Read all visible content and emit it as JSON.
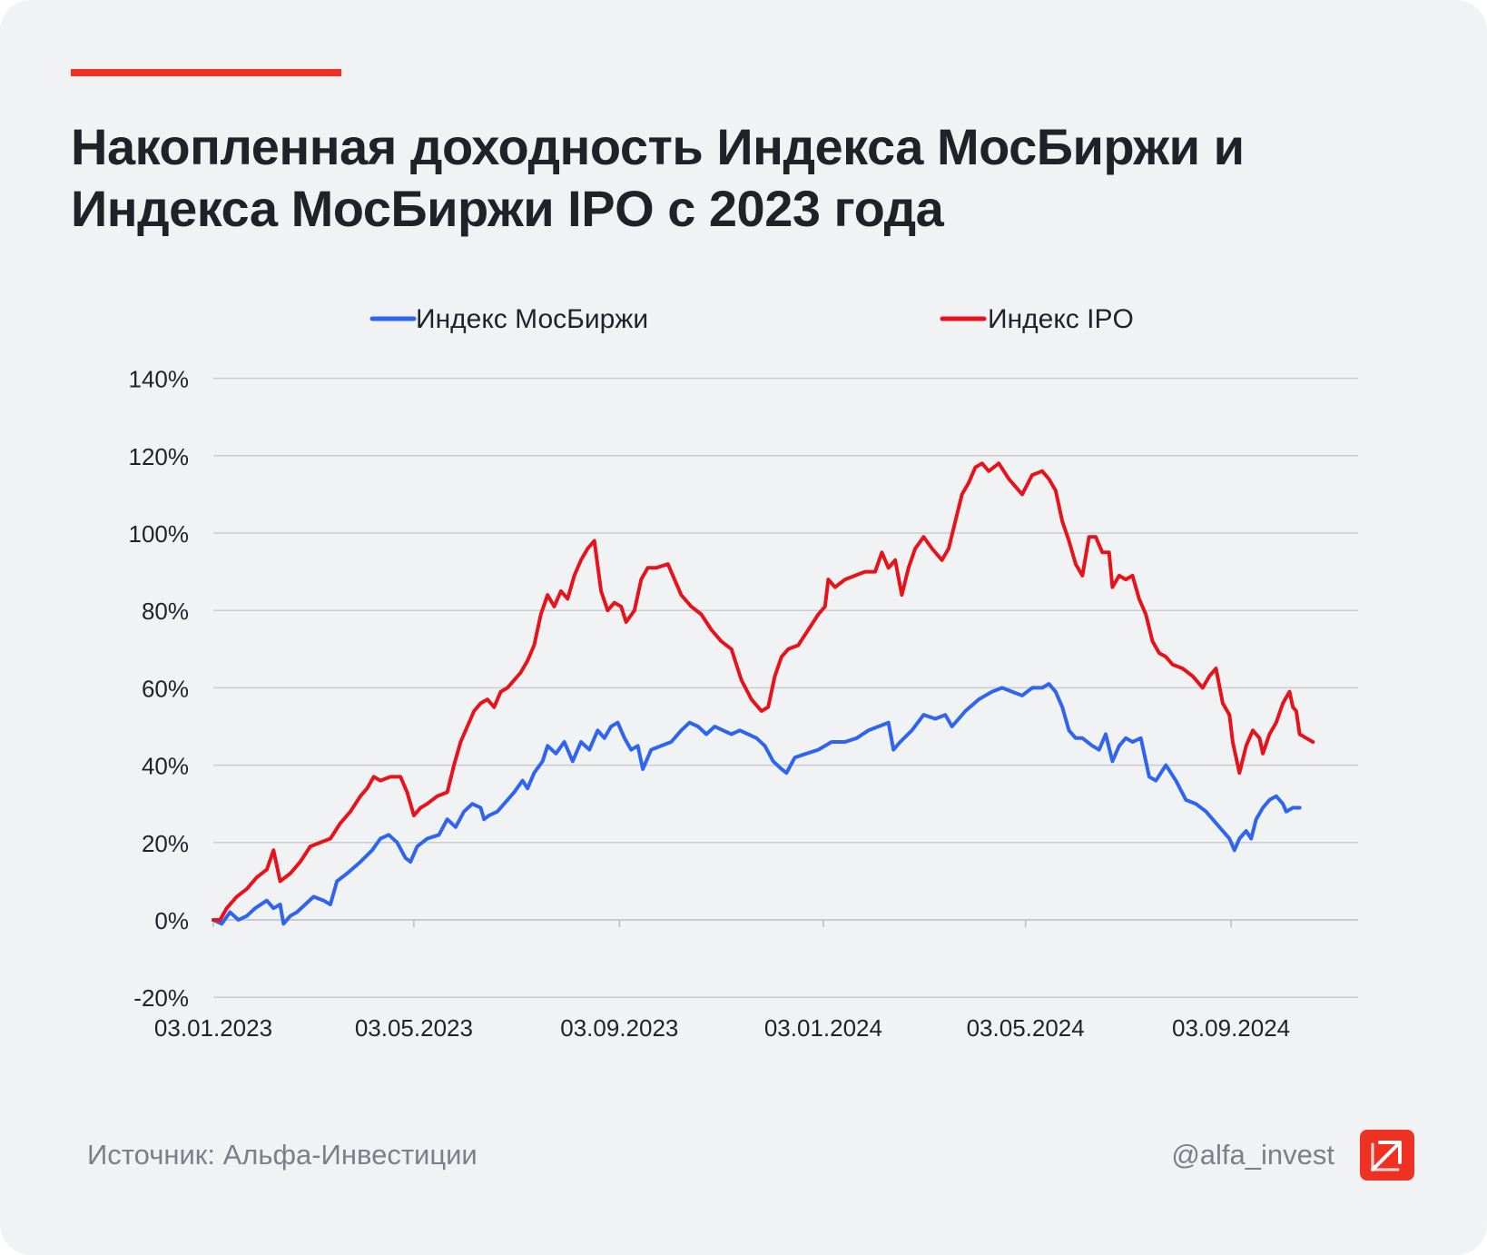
{
  "header": {
    "title_line1": "Накопленная доходность Индекса МосБиржи и",
    "title_line2": "Индекса МосБиржи IPO с 2023 года"
  },
  "footer": {
    "source": "Источник: Альфа-Инвестиции",
    "handle": "@alfa_invest"
  },
  "colors": {
    "accent": "#ef3124",
    "moex": "#2e64f0",
    "ipo": "#e8121b",
    "grid": "#c9ccd1",
    "text": "#1f2329"
  },
  "chart_data": {
    "type": "line",
    "title": "Накопленная доходность Индекса МосБиржи и Индекса МосБиржи IPO с 2023 года",
    "xlabel": "",
    "ylabel": "",
    "ylim": [
      -20,
      140
    ],
    "yticks": [
      -20,
      0,
      20,
      40,
      60,
      80,
      100,
      120,
      140
    ],
    "ytick_labels": [
      "-20%",
      "0%",
      "20%",
      "40%",
      "60%",
      "80%",
      "100%",
      "120%",
      "140%"
    ],
    "x_range": [
      "03.01.2023",
      "18.11.2024"
    ],
    "x_range_days": [
      0,
      685
    ],
    "xticks": [
      {
        "label": "03.01.2023",
        "day": 0
      },
      {
        "label": "03.05.2023",
        "day": 120
      },
      {
        "label": "03.09.2023",
        "day": 243
      },
      {
        "label": "03.01.2024",
        "day": 365
      },
      {
        "label": "03.05.2024",
        "day": 486
      },
      {
        "label": "03.09.2024",
        "day": 609
      }
    ],
    "grid": true,
    "legend_position": "top",
    "series": [
      {
        "name": "Индекс МосБиржи",
        "color": "#2e64f0",
        "points": [
          [
            0,
            0
          ],
          [
            5,
            -1
          ],
          [
            10,
            2
          ],
          [
            15,
            0
          ],
          [
            20,
            1
          ],
          [
            25,
            3
          ],
          [
            32,
            5
          ],
          [
            36,
            3
          ],
          [
            40,
            4
          ],
          [
            42,
            -1
          ],
          [
            46,
            1
          ],
          [
            50,
            2
          ],
          [
            55,
            4
          ],
          [
            60,
            6
          ],
          [
            66,
            5
          ],
          [
            70,
            4
          ],
          [
            74,
            10
          ],
          [
            80,
            12
          ],
          [
            88,
            15
          ],
          [
            95,
            18
          ],
          [
            100,
            21
          ],
          [
            105,
            22
          ],
          [
            110,
            20
          ],
          [
            115,
            16
          ],
          [
            118,
            15
          ],
          [
            122,
            19
          ],
          [
            128,
            21
          ],
          [
            135,
            22
          ],
          [
            140,
            26
          ],
          [
            145,
            24
          ],
          [
            150,
            28
          ],
          [
            155,
            30
          ],
          [
            160,
            29
          ],
          [
            162,
            26
          ],
          [
            165,
            27
          ],
          [
            170,
            28
          ],
          [
            176,
            31
          ],
          [
            180,
            33
          ],
          [
            185,
            36
          ],
          [
            188,
            34
          ],
          [
            192,
            38
          ],
          [
            197,
            41
          ],
          [
            200,
            45
          ],
          [
            205,
            43
          ],
          [
            210,
            46
          ],
          [
            215,
            41
          ],
          [
            220,
            46
          ],
          [
            225,
            44
          ],
          [
            230,
            49
          ],
          [
            234,
            47
          ],
          [
            238,
            50
          ],
          [
            242,
            51
          ],
          [
            246,
            47
          ],
          [
            250,
            44
          ],
          [
            254,
            45
          ],
          [
            257,
            39
          ],
          [
            262,
            44
          ],
          [
            268,
            45
          ],
          [
            274,
            46
          ],
          [
            280,
            49
          ],
          [
            285,
            51
          ],
          [
            290,
            50
          ],
          [
            295,
            48
          ],
          [
            300,
            50
          ],
          [
            305,
            49
          ],
          [
            310,
            48
          ],
          [
            315,
            49
          ],
          [
            320,
            48
          ],
          [
            325,
            47
          ],
          [
            330,
            45
          ],
          [
            335,
            41
          ],
          [
            340,
            39
          ],
          [
            343,
            38
          ],
          [
            348,
            42
          ],
          [
            355,
            43
          ],
          [
            362,
            44
          ],
          [
            370,
            46
          ],
          [
            378,
            46
          ],
          [
            385,
            47
          ],
          [
            392,
            49
          ],
          [
            398,
            50
          ],
          [
            404,
            51
          ],
          [
            407,
            44
          ],
          [
            411,
            46
          ],
          [
            418,
            49
          ],
          [
            425,
            53
          ],
          [
            432,
            52
          ],
          [
            438,
            53
          ],
          [
            442,
            50
          ],
          [
            450,
            54
          ],
          [
            458,
            57
          ],
          [
            466,
            59
          ],
          [
            472,
            60
          ],
          [
            478,
            59
          ],
          [
            484,
            58
          ],
          [
            490,
            60
          ],
          [
            496,
            60
          ],
          [
            500,
            61
          ],
          [
            504,
            59
          ],
          [
            508,
            55
          ],
          [
            512,
            49
          ],
          [
            516,
            47
          ],
          [
            520,
            47
          ],
          [
            526,
            45
          ],
          [
            530,
            44
          ],
          [
            534,
            48
          ],
          [
            538,
            41
          ],
          [
            542,
            45
          ],
          [
            546,
            47
          ],
          [
            550,
            46
          ],
          [
            555,
            47
          ],
          [
            560,
            37
          ],
          [
            564,
            36
          ],
          [
            570,
            40
          ],
          [
            576,
            36
          ],
          [
            582,
            31
          ],
          [
            588,
            30
          ],
          [
            594,
            28
          ],
          [
            598,
            26
          ],
          [
            604,
            23
          ],
          [
            608,
            21
          ],
          [
            611,
            18
          ],
          [
            614,
            21
          ],
          [
            618,
            23
          ],
          [
            621,
            21
          ],
          [
            624,
            26
          ],
          [
            628,
            29
          ],
          [
            632,
            31
          ],
          [
            636,
            32
          ],
          [
            640,
            30
          ],
          [
            642,
            28
          ],
          [
            646,
            29
          ],
          [
            650,
            29
          ]
        ]
      },
      {
        "name": "Индекс IPO",
        "color": "#e8121b",
        "points": [
          [
            0,
            0
          ],
          [
            4,
            0
          ],
          [
            8,
            3
          ],
          [
            14,
            6
          ],
          [
            20,
            8
          ],
          [
            26,
            11
          ],
          [
            32,
            13
          ],
          [
            36,
            18
          ],
          [
            40,
            10
          ],
          [
            46,
            12
          ],
          [
            52,
            15
          ],
          [
            58,
            19
          ],
          [
            64,
            20
          ],
          [
            70,
            21
          ],
          [
            76,
            25
          ],
          [
            82,
            28
          ],
          [
            88,
            32
          ],
          [
            92,
            34
          ],
          [
            96,
            37
          ],
          [
            100,
            36
          ],
          [
            106,
            37
          ],
          [
            112,
            37
          ],
          [
            116,
            33
          ],
          [
            120,
            27
          ],
          [
            124,
            29
          ],
          [
            128,
            30
          ],
          [
            134,
            32
          ],
          [
            140,
            33
          ],
          [
            144,
            40
          ],
          [
            148,
            46
          ],
          [
            152,
            50
          ],
          [
            156,
            54
          ],
          [
            160,
            56
          ],
          [
            164,
            57
          ],
          [
            168,
            55
          ],
          [
            172,
            59
          ],
          [
            176,
            60
          ],
          [
            180,
            62
          ],
          [
            184,
            64
          ],
          [
            188,
            67
          ],
          [
            192,
            71
          ],
          [
            196,
            79
          ],
          [
            200,
            84
          ],
          [
            204,
            81
          ],
          [
            208,
            85
          ],
          [
            212,
            83
          ],
          [
            216,
            89
          ],
          [
            220,
            93
          ],
          [
            224,
            96
          ],
          [
            228,
            98
          ],
          [
            232,
            85
          ],
          [
            236,
            80
          ],
          [
            240,
            82
          ],
          [
            244,
            81
          ],
          [
            247,
            77
          ],
          [
            252,
            80
          ],
          [
            256,
            88
          ],
          [
            260,
            91
          ],
          [
            265,
            91
          ],
          [
            272,
            92
          ],
          [
            280,
            84
          ],
          [
            286,
            81
          ],
          [
            292,
            79
          ],
          [
            298,
            75
          ],
          [
            304,
            72
          ],
          [
            310,
            70
          ],
          [
            316,
            62
          ],
          [
            322,
            57
          ],
          [
            328,
            54
          ],
          [
            332,
            55
          ],
          [
            336,
            63
          ],
          [
            340,
            68
          ],
          [
            344,
            70
          ],
          [
            350,
            71
          ],
          [
            356,
            75
          ],
          [
            362,
            79
          ],
          [
            366,
            81
          ],
          [
            368,
            88
          ],
          [
            372,
            86
          ],
          [
            378,
            88
          ],
          [
            384,
            89
          ],
          [
            390,
            90
          ],
          [
            396,
            90
          ],
          [
            400,
            95
          ],
          [
            404,
            91
          ],
          [
            408,
            93
          ],
          [
            412,
            84
          ],
          [
            416,
            91
          ],
          [
            420,
            96
          ],
          [
            425,
            99
          ],
          [
            430,
            96
          ],
          [
            436,
            93
          ],
          [
            440,
            96
          ],
          [
            444,
            103
          ],
          [
            448,
            110
          ],
          [
            452,
            113
          ],
          [
            456,
            117
          ],
          [
            460,
            118
          ],
          [
            464,
            116
          ],
          [
            470,
            118
          ],
          [
            476,
            114
          ],
          [
            484,
            110
          ],
          [
            490,
            115
          ],
          [
            496,
            116
          ],
          [
            500,
            114
          ],
          [
            504,
            111
          ],
          [
            508,
            103
          ],
          [
            512,
            98
          ],
          [
            516,
            92
          ],
          [
            520,
            89
          ],
          [
            524,
            99
          ],
          [
            528,
            99
          ],
          [
            532,
            95
          ],
          [
            536,
            95
          ],
          [
            538,
            86
          ],
          [
            542,
            89
          ],
          [
            546,
            88
          ],
          [
            550,
            89
          ],
          [
            554,
            83
          ],
          [
            558,
            79
          ],
          [
            562,
            72
          ],
          [
            566,
            69
          ],
          [
            570,
            68
          ],
          [
            574,
            66
          ],
          [
            580,
            65
          ],
          [
            586,
            63
          ],
          [
            592,
            60
          ],
          [
            596,
            63
          ],
          [
            600,
            65
          ],
          [
            604,
            56
          ],
          [
            608,
            53
          ],
          [
            610,
            46
          ],
          [
            612,
            42
          ],
          [
            614,
            38
          ],
          [
            618,
            45
          ],
          [
            622,
            49
          ],
          [
            626,
            47
          ],
          [
            628,
            43
          ],
          [
            632,
            48
          ],
          [
            636,
            51
          ],
          [
            640,
            56
          ],
          [
            644,
            59
          ],
          [
            646,
            55
          ],
          [
            648,
            54
          ],
          [
            650,
            48
          ],
          [
            654,
            47
          ],
          [
            658,
            46
          ]
        ]
      }
    ]
  }
}
